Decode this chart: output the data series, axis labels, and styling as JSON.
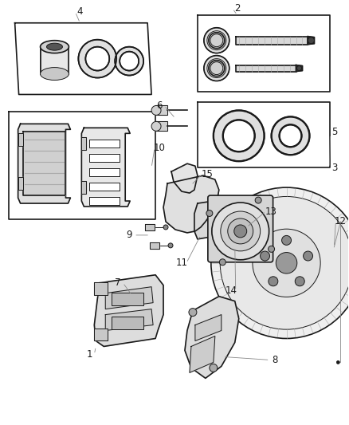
{
  "bg": "#ffffff",
  "lc": "#1a1a1a",
  "lc_light": "#888888",
  "lw": 1.2,
  "lw_thin": 0.7,
  "lw_label": 0.5,
  "fig_w": 4.38,
  "fig_h": 5.33
}
